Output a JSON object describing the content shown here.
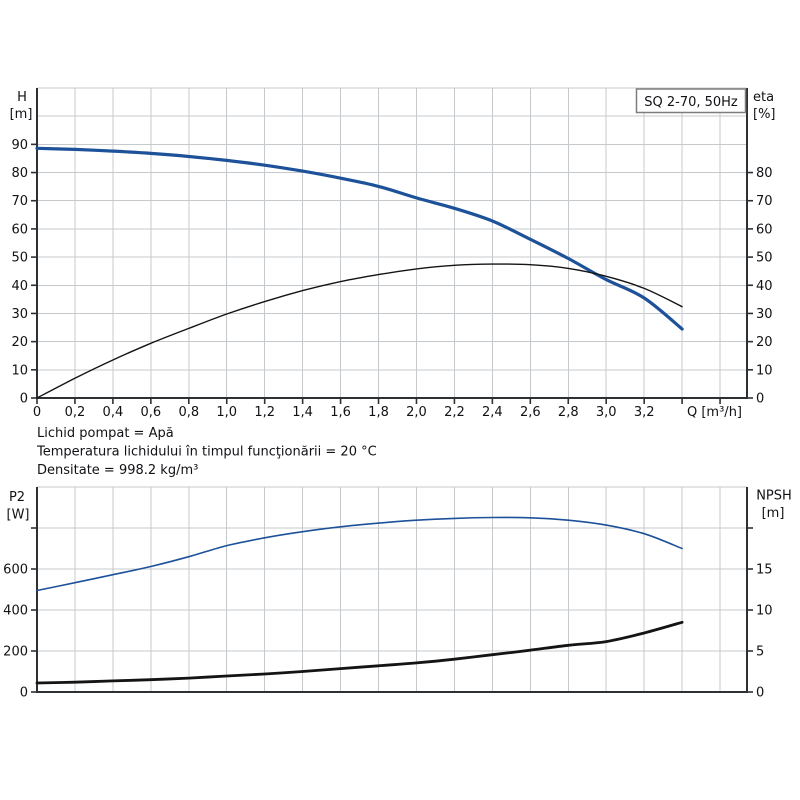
{
  "page": {
    "background": "#ffffff"
  },
  "colors": {
    "curve_blue": "#1d5199",
    "curve_black": "#141414",
    "grid": "#c6c9cc",
    "axis": "#2e3134",
    "text": "#121216",
    "title_box_border": "#7d7d7d",
    "title_box_fill": "#ffffff"
  },
  "info_lines": [
    "Lichid pompat = Apă",
    "Temperatura lichidului în timpul funcţionării = 20 °C",
    "Densitate = 998.2 kg/m³"
  ],
  "chart_data": [
    {
      "type": "line",
      "title_box": "SQ 2-70, 50Hz",
      "x_axis": {
        "label": "Q [m³/h]",
        "min": 0,
        "max": 3.742,
        "grid_step": 0.2,
        "ticks": [
          {
            "v": 0,
            "label": "0"
          },
          {
            "v": 0.2,
            "label": "0,2"
          },
          {
            "v": 0.4,
            "label": "0,4"
          },
          {
            "v": 0.6,
            "label": "0,6"
          },
          {
            "v": 0.8,
            "label": "0,8"
          },
          {
            "v": 1.0,
            "label": "1,0"
          },
          {
            "v": 1.2,
            "label": "1,2"
          },
          {
            "v": 1.4,
            "label": "1,4"
          },
          {
            "v": 1.6,
            "label": "1,6"
          },
          {
            "v": 1.8,
            "label": "1,8"
          },
          {
            "v": 2.0,
            "label": "2,0"
          },
          {
            "v": 2.2,
            "label": "2,2"
          },
          {
            "v": 2.4,
            "label": "2,4"
          },
          {
            "v": 2.6,
            "label": "2,6"
          },
          {
            "v": 2.8,
            "label": "2,8"
          },
          {
            "v": 3.0,
            "label": "3,0"
          },
          {
            "v": 3.2,
            "label": "3,2"
          },
          {
            "v": 3.4
          },
          {
            "v": 3.6
          }
        ]
      },
      "left_axis": {
        "title": [
          "H",
          "[m]"
        ],
        "min": 0,
        "max": 110,
        "grid_step": 10,
        "ticks": [
          {
            "v": 0,
            "label": "0"
          },
          {
            "v": 10,
            "label": "10"
          },
          {
            "v": 20,
            "label": "20"
          },
          {
            "v": 30,
            "label": "30"
          },
          {
            "v": 40,
            "label": "40"
          },
          {
            "v": 50,
            "label": "50"
          },
          {
            "v": 60,
            "label": "60"
          },
          {
            "v": 70,
            "label": "70"
          },
          {
            "v": 80,
            "label": "80"
          },
          {
            "v": 90,
            "label": "90"
          }
        ]
      },
      "right_axis": {
        "title": [
          "eta",
          "[%]"
        ],
        "min": 0,
        "max": 110,
        "ticks": [
          {
            "v": 0,
            "label": "0"
          },
          {
            "v": 10,
            "label": "10"
          },
          {
            "v": 20,
            "label": "20"
          },
          {
            "v": 30,
            "label": "30"
          },
          {
            "v": 40,
            "label": "40"
          },
          {
            "v": 50,
            "label": "50"
          },
          {
            "v": 60,
            "label": "60"
          },
          {
            "v": 70,
            "label": "70"
          },
          {
            "v": 80,
            "label": "80"
          }
        ]
      },
      "series": [
        {
          "name": "H",
          "axis": "left",
          "color": "#1d5199",
          "width": 3.2,
          "x": [
            0,
            0.2,
            0.4,
            0.6,
            0.8,
            1.0,
            1.2,
            1.4,
            1.6,
            1.8,
            2.0,
            2.2,
            2.4,
            2.6,
            2.8,
            3.0,
            3.2,
            3.4
          ],
          "y": [
            88.6,
            88.2,
            87.6,
            86.8,
            85.7,
            84.3,
            82.6,
            80.5,
            78.0,
            75.1,
            71.0,
            67.3,
            62.8,
            56.3,
            49.5,
            42.0,
            35.5,
            24.5
          ]
        },
        {
          "name": "eta",
          "axis": "right",
          "color": "#141414",
          "width": 1.4,
          "x": [
            0,
            0.2,
            0.4,
            0.6,
            0.8,
            1.0,
            1.2,
            1.4,
            1.6,
            1.8,
            2.0,
            2.2,
            2.4,
            2.6,
            2.8,
            3.0,
            3.2,
            3.4
          ],
          "y": [
            0,
            7.0,
            13.5,
            19.4,
            24.7,
            29.8,
            34.2,
            38.1,
            41.3,
            43.8,
            45.8,
            47.1,
            47.5,
            47.3,
            46.0,
            43.2,
            38.9,
            32.4
          ]
        }
      ]
    },
    {
      "type": "line",
      "x_axis": {
        "min": 0,
        "max": 3.742,
        "grid_step": 0.2,
        "ticks": []
      },
      "left_axis": {
        "title": [
          "P2",
          "[W]"
        ],
        "min": 0,
        "max": 1000,
        "grid_step": 200,
        "ticks": [
          {
            "v": 0,
            "label": "0"
          },
          {
            "v": 200,
            "label": "200"
          },
          {
            "v": 400,
            "label": "400"
          },
          {
            "v": 600,
            "label": "600"
          },
          {
            "v": 800
          }
        ]
      },
      "right_axis": {
        "title": [
          "NPSH",
          "[m]"
        ],
        "min": 0,
        "max": 25,
        "ticks": [
          {
            "v": 0,
            "label": "0"
          },
          {
            "v": 5,
            "label": "5"
          },
          {
            "v": 10,
            "label": "10"
          },
          {
            "v": 15,
            "label": "15"
          },
          {
            "v": 20
          }
        ]
      },
      "series": [
        {
          "name": "P2",
          "axis": "left",
          "color": "#1d5199",
          "width": 1.6,
          "x": [
            0,
            0.2,
            0.4,
            0.6,
            0.8,
            1.0,
            1.2,
            1.4,
            1.6,
            1.8,
            2.0,
            2.2,
            2.4,
            2.6,
            2.8,
            3.0,
            3.2,
            3.4
          ],
          "y": [
            495,
            533,
            572,
            612,
            660,
            714,
            752,
            782,
            806,
            824,
            838,
            847,
            851,
            850,
            838,
            814,
            772,
            700
          ]
        },
        {
          "name": "NPSH",
          "axis": "right",
          "color": "#141414",
          "width": 2.8,
          "x": [
            0,
            0.2,
            0.4,
            0.6,
            0.8,
            1.0,
            1.2,
            1.4,
            1.6,
            1.8,
            2.0,
            2.2,
            2.4,
            2.6,
            2.8,
            3.0,
            3.2,
            3.4
          ],
          "y": [
            1.1,
            1.2,
            1.35,
            1.5,
            1.7,
            1.95,
            2.2,
            2.5,
            2.85,
            3.2,
            3.55,
            4.0,
            4.55,
            5.1,
            5.7,
            6.15,
            7.2,
            8.5
          ]
        }
      ]
    }
  ]
}
